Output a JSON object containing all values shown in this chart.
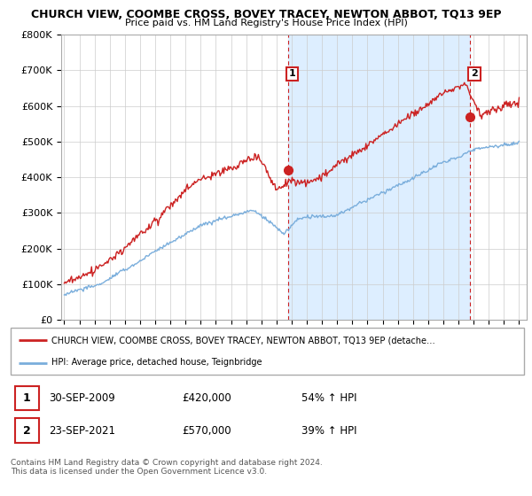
{
  "title": "CHURCH VIEW, COOMBE CROSS, BOVEY TRACEY, NEWTON ABBOT, TQ13 9EP",
  "subtitle": "Price paid vs. HM Land Registry's House Price Index (HPI)",
  "ylim": [
    0,
    800000
  ],
  "yticks": [
    0,
    100000,
    200000,
    300000,
    400000,
    500000,
    600000,
    700000,
    800000
  ],
  "ytick_labels": [
    "£0",
    "£100K",
    "£200K",
    "£300K",
    "£400K",
    "£500K",
    "£600K",
    "£700K",
    "£800K"
  ],
  "hpi_color": "#7aaedc",
  "price_color": "#cc2222",
  "marker_color": "#cc2222",
  "background_color": "#ffffff",
  "grid_color": "#cccccc",
  "shading_color": "#ddeeff",
  "sale1_year": 2009.75,
  "sale1_price": 420000,
  "sale2_year": 2021.75,
  "sale2_price": 570000,
  "vline1_x": 2009.75,
  "vline2_x": 2021.75,
  "legend_label_red": "CHURCH VIEW, COOMBE CROSS, BOVEY TRACEY, NEWTON ABBOT, TQ13 9EP (detache…",
  "legend_label_blue": "HPI: Average price, detached house, Teignbridge",
  "annotation1_date": "30-SEP-2009",
  "annotation1_price": "£420,000",
  "annotation1_hpi": "54% ↑ HPI",
  "annotation2_date": "23-SEP-2021",
  "annotation2_price": "£570,000",
  "annotation2_hpi": "39% ↑ HPI",
  "footer": "Contains HM Land Registry data © Crown copyright and database right 2024.\nThis data is licensed under the Open Government Licence v3.0.",
  "xlim_left": 1994.8,
  "xlim_right": 2025.5
}
